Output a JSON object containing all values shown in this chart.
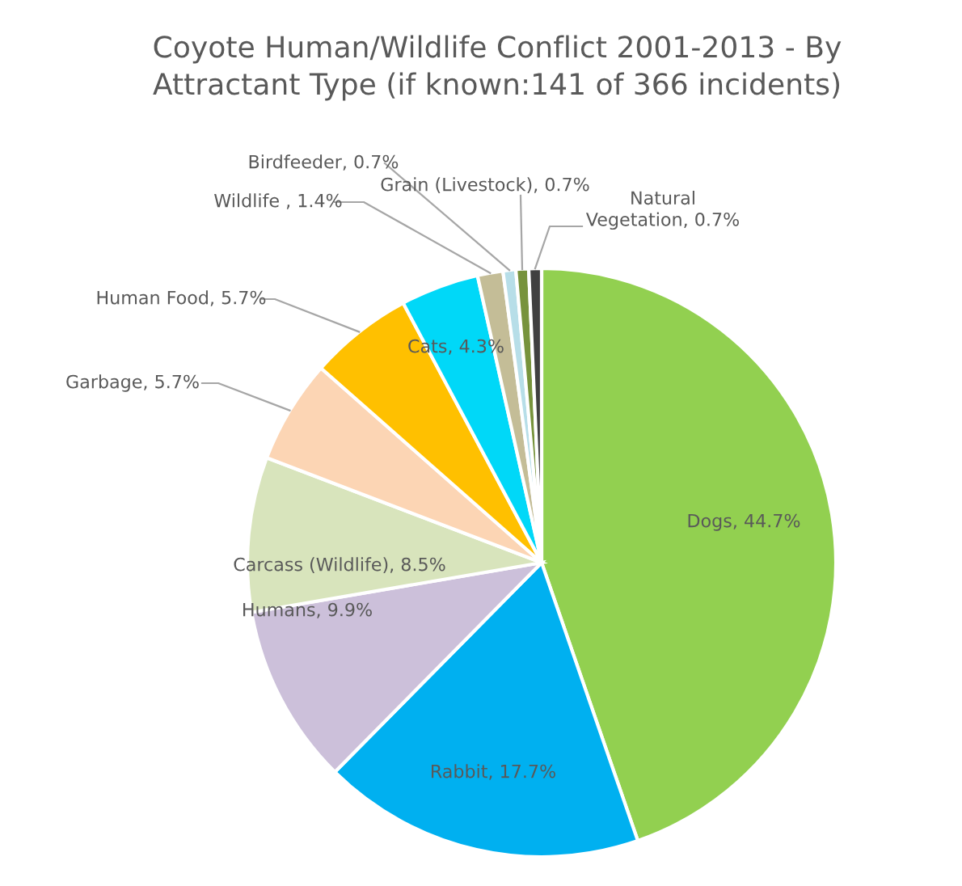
{
  "chart_data": {
    "type": "pie",
    "title": "Coyote Human/Wildlife Conflict 2001-2013 - By\nAttractant Type (if known:141 of 366 incidents)",
    "categories": [
      "Dogs",
      "Rabbit",
      "Humans",
      "Carcass (Wildlife)",
      "Garbage",
      "Human Food",
      "Cats",
      "Wildlife ",
      "Birdfeeder",
      "Grain (Livestock)",
      "Natural Vegetation"
    ],
    "values": [
      44.7,
      17.7,
      9.9,
      8.5,
      5.7,
      5.7,
      4.3,
      1.4,
      0.7,
      0.7,
      0.7
    ],
    "value_labels": [
      "44.7%",
      "17.7%",
      "9.9%",
      "8.5%",
      "5.7%",
      "5.7%",
      "4.3%",
      "1.4%",
      "0.7%",
      "0.7%",
      "0.7%"
    ],
    "colors": [
      "#92d050",
      "#00b0f0",
      "#ccc0da",
      "#d8e4bc",
      "#fcd5b4",
      "#ffc000",
      "#00d8f8",
      "#c4bd97",
      "#b7dee8",
      "#77933c",
      "#404040"
    ],
    "legend": false
  }
}
